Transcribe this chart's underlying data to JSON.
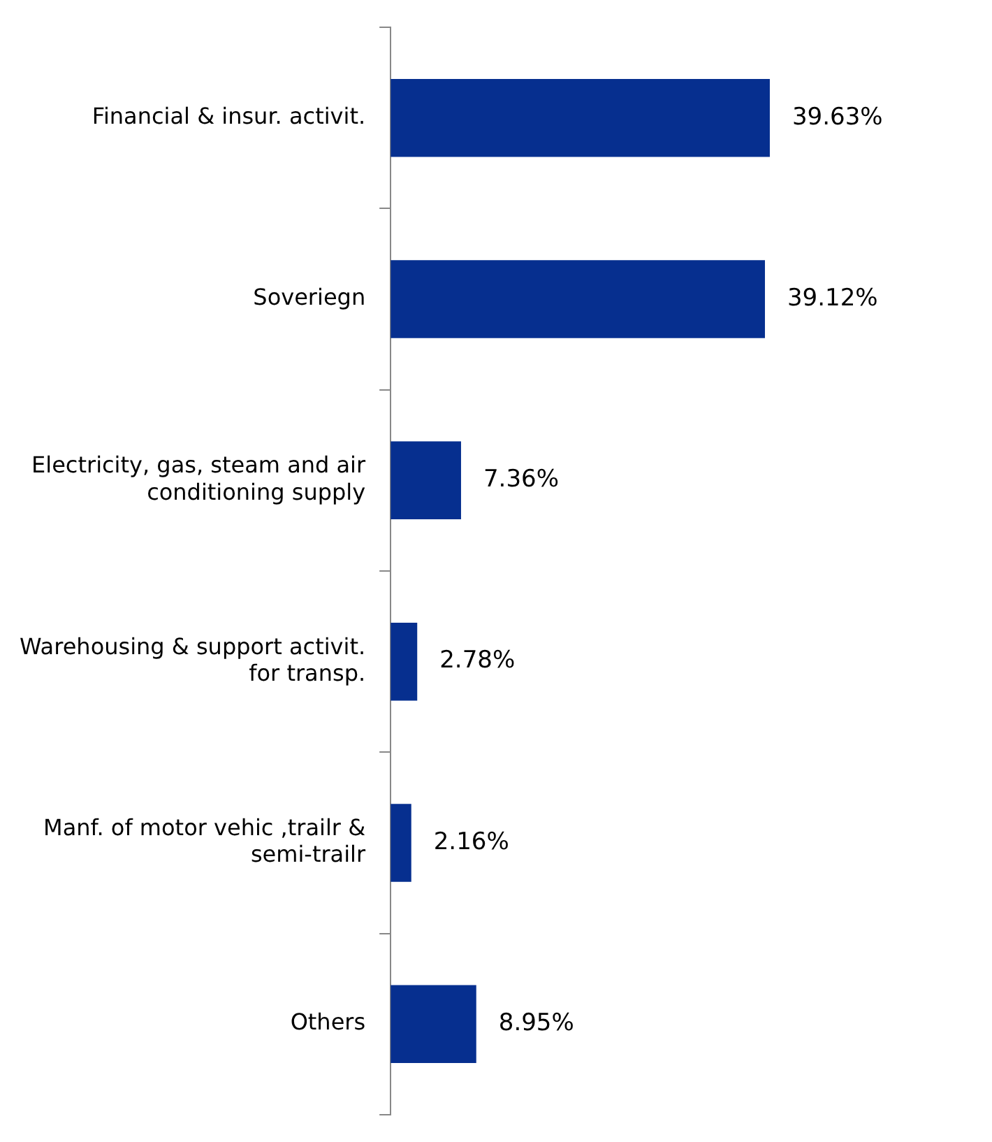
{
  "chart_data": {
    "type": "bar",
    "orientation": "horizontal",
    "categories": [
      "Financial & insur. activit.",
      "Soveriegn",
      "Electricity, gas, steam and air conditioning supply",
      "Warehousing & support activit. for transp.",
      "Manf. of motor vehic ,trailr & semi-trailr",
      "Others"
    ],
    "values": [
      39.63,
      39.12,
      7.36,
      2.78,
      2.16,
      8.95
    ],
    "value_labels": [
      "39.63%",
      "39.12%",
      "7.36%",
      "2.78%",
      "2.16%",
      "8.95%"
    ],
    "color": "#062f8f",
    "tick_labels": "y"
  }
}
